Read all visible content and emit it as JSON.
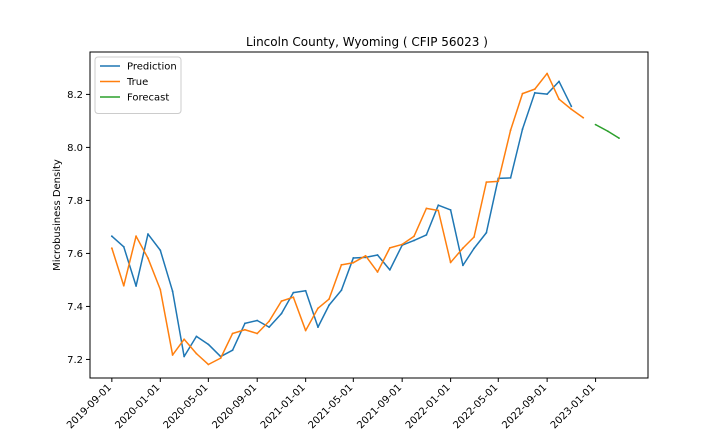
{
  "chart_data": {
    "type": "line",
    "title": "Lincoln County, Wyoming ( CFIP 56023 )",
    "xlabel": "",
    "ylabel": "Microbusiness Density",
    "xlim": [
      "2019-07-08",
      "2023-05-13"
    ],
    "ylim": [
      7.13,
      8.36
    ],
    "x_ticks": [
      "2019-09-01",
      "2020-01-01",
      "2020-05-01",
      "2020-09-01",
      "2021-01-01",
      "2021-05-01",
      "2021-09-01",
      "2022-01-01",
      "2022-05-01",
      "2022-09-01",
      "2023-01-01"
    ],
    "y_ticks": [
      7.2,
      7.4,
      7.6,
      7.8,
      8.0,
      8.2
    ],
    "legend_position": "top-left",
    "grid": false,
    "series": [
      {
        "name": "Prediction",
        "color": "#1f77b4",
        "x": [
          "2019-09-01",
          "2019-10-01",
          "2019-11-01",
          "2019-12-01",
          "2020-01-01",
          "2020-02-01",
          "2020-03-01",
          "2020-04-01",
          "2020-05-01",
          "2020-06-01",
          "2020-07-01",
          "2020-08-01",
          "2020-09-01",
          "2020-10-01",
          "2020-11-01",
          "2020-12-01",
          "2021-01-01",
          "2021-02-01",
          "2021-03-01",
          "2021-04-01",
          "2021-05-01",
          "2021-06-01",
          "2021-07-01",
          "2021-08-01",
          "2021-09-01",
          "2021-10-01",
          "2021-11-01",
          "2021-12-01",
          "2022-01-01",
          "2022-02-01",
          "2022-03-01",
          "2022-04-01",
          "2022-05-01",
          "2022-06-01",
          "2022-07-01",
          "2022-08-01",
          "2022-09-01",
          "2022-10-01",
          "2022-11-01"
        ],
        "values": [
          7.665,
          7.625,
          7.477,
          7.673,
          7.612,
          7.457,
          7.211,
          7.287,
          7.257,
          7.211,
          7.235,
          7.336,
          7.347,
          7.322,
          7.373,
          7.452,
          7.459,
          7.322,
          7.405,
          7.461,
          7.583,
          7.585,
          7.594,
          7.538,
          7.631,
          7.649,
          7.67,
          7.782,
          7.764,
          7.555,
          7.619,
          7.678,
          7.883,
          7.885,
          8.069,
          8.206,
          8.201,
          8.249,
          8.155
        ]
      },
      {
        "name": "True",
        "color": "#ff7f0e",
        "x": [
          "2019-09-01",
          "2019-10-01",
          "2019-11-01",
          "2019-12-01",
          "2020-01-01",
          "2020-02-01",
          "2020-03-01",
          "2020-04-01",
          "2020-05-01",
          "2020-06-01",
          "2020-07-01",
          "2020-08-01",
          "2020-09-01",
          "2020-10-01",
          "2020-11-01",
          "2020-12-01",
          "2021-01-01",
          "2021-02-01",
          "2021-03-01",
          "2021-04-01",
          "2021-05-01",
          "2021-06-01",
          "2021-07-01",
          "2021-08-01",
          "2021-09-01",
          "2021-10-01",
          "2021-11-01",
          "2021-12-01",
          "2022-01-01",
          "2022-02-01",
          "2022-03-01",
          "2022-04-01",
          "2022-05-01",
          "2022-06-01",
          "2022-07-01",
          "2022-08-01",
          "2022-09-01",
          "2022-10-01",
          "2022-11-01",
          "2022-12-01"
        ],
        "values": [
          7.62,
          7.478,
          7.665,
          7.582,
          7.464,
          7.217,
          7.276,
          7.222,
          7.181,
          7.205,
          7.298,
          7.312,
          7.298,
          7.344,
          7.42,
          7.435,
          7.309,
          7.393,
          7.428,
          7.557,
          7.565,
          7.591,
          7.53,
          7.621,
          7.634,
          7.665,
          7.77,
          7.762,
          7.566,
          7.62,
          7.662,
          7.869,
          7.872,
          8.065,
          8.203,
          8.22,
          8.279,
          8.182,
          8.144,
          8.112
        ]
      },
      {
        "name": "Forecast",
        "color": "#2ca02c",
        "x": [
          "2023-01-01",
          "2023-02-01",
          "2023-03-01"
        ],
        "values": [
          8.086,
          8.061,
          8.035
        ]
      }
    ]
  }
}
